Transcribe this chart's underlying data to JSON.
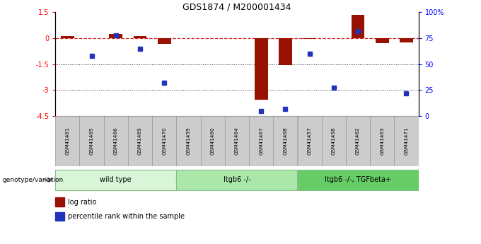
{
  "title": "GDS1874 / M200001434",
  "samples": [
    "GSM41461",
    "GSM41465",
    "GSM41466",
    "GSM41469",
    "GSM41470",
    "GSM41459",
    "GSM41460",
    "GSM41464",
    "GSM41467",
    "GSM41468",
    "GSM41457",
    "GSM41458",
    "GSM41462",
    "GSM41463",
    "GSM41471"
  ],
  "log_ratio": [
    0.1,
    0.0,
    0.25,
    0.1,
    -0.35,
    0.0,
    0.0,
    0.0,
    -3.55,
    -1.55,
    -0.05,
    0.0,
    1.35,
    -0.3,
    -0.25
  ],
  "percentile_rank": [
    null,
    58,
    78,
    65,
    32,
    null,
    null,
    null,
    5,
    7,
    60,
    27,
    82,
    null,
    22
  ],
  "groups": [
    {
      "label": "wild type",
      "start": 0,
      "end": 5,
      "color": "#d8f5d8"
    },
    {
      "label": "Itgb6 -/-",
      "start": 5,
      "end": 10,
      "color": "#aae8aa"
    },
    {
      "label": "Itgb6 -/-, TGFbeta+",
      "start": 10,
      "end": 15,
      "color": "#66cc66"
    }
  ],
  "ylim_left": [
    -4.5,
    1.5
  ],
  "ylim_right": [
    0,
    100
  ],
  "yticks_left": [
    1.5,
    0,
    -1.5,
    -3,
    -4.5
  ],
  "yticks_right": [
    100,
    75,
    50,
    25,
    0
  ],
  "ytick_labels_left": [
    "1.5",
    "0",
    "-1.5",
    "-3",
    "-4.5"
  ],
  "ytick_labels_right": [
    "100%",
    "75",
    "50",
    "25",
    "0"
  ],
  "bar_color": "#991100",
  "dot_color": "#2233bb",
  "zero_line_color": "#cc2222",
  "grid_line_color": "#333333",
  "background_color": "#ffffff",
  "bar_width": 0.55,
  "sample_box_color": "#cccccc",
  "sample_box_edge": "#999999",
  "group_edge_color": "#88bb88",
  "legend_red": "#991100",
  "legend_blue": "#2233bb"
}
